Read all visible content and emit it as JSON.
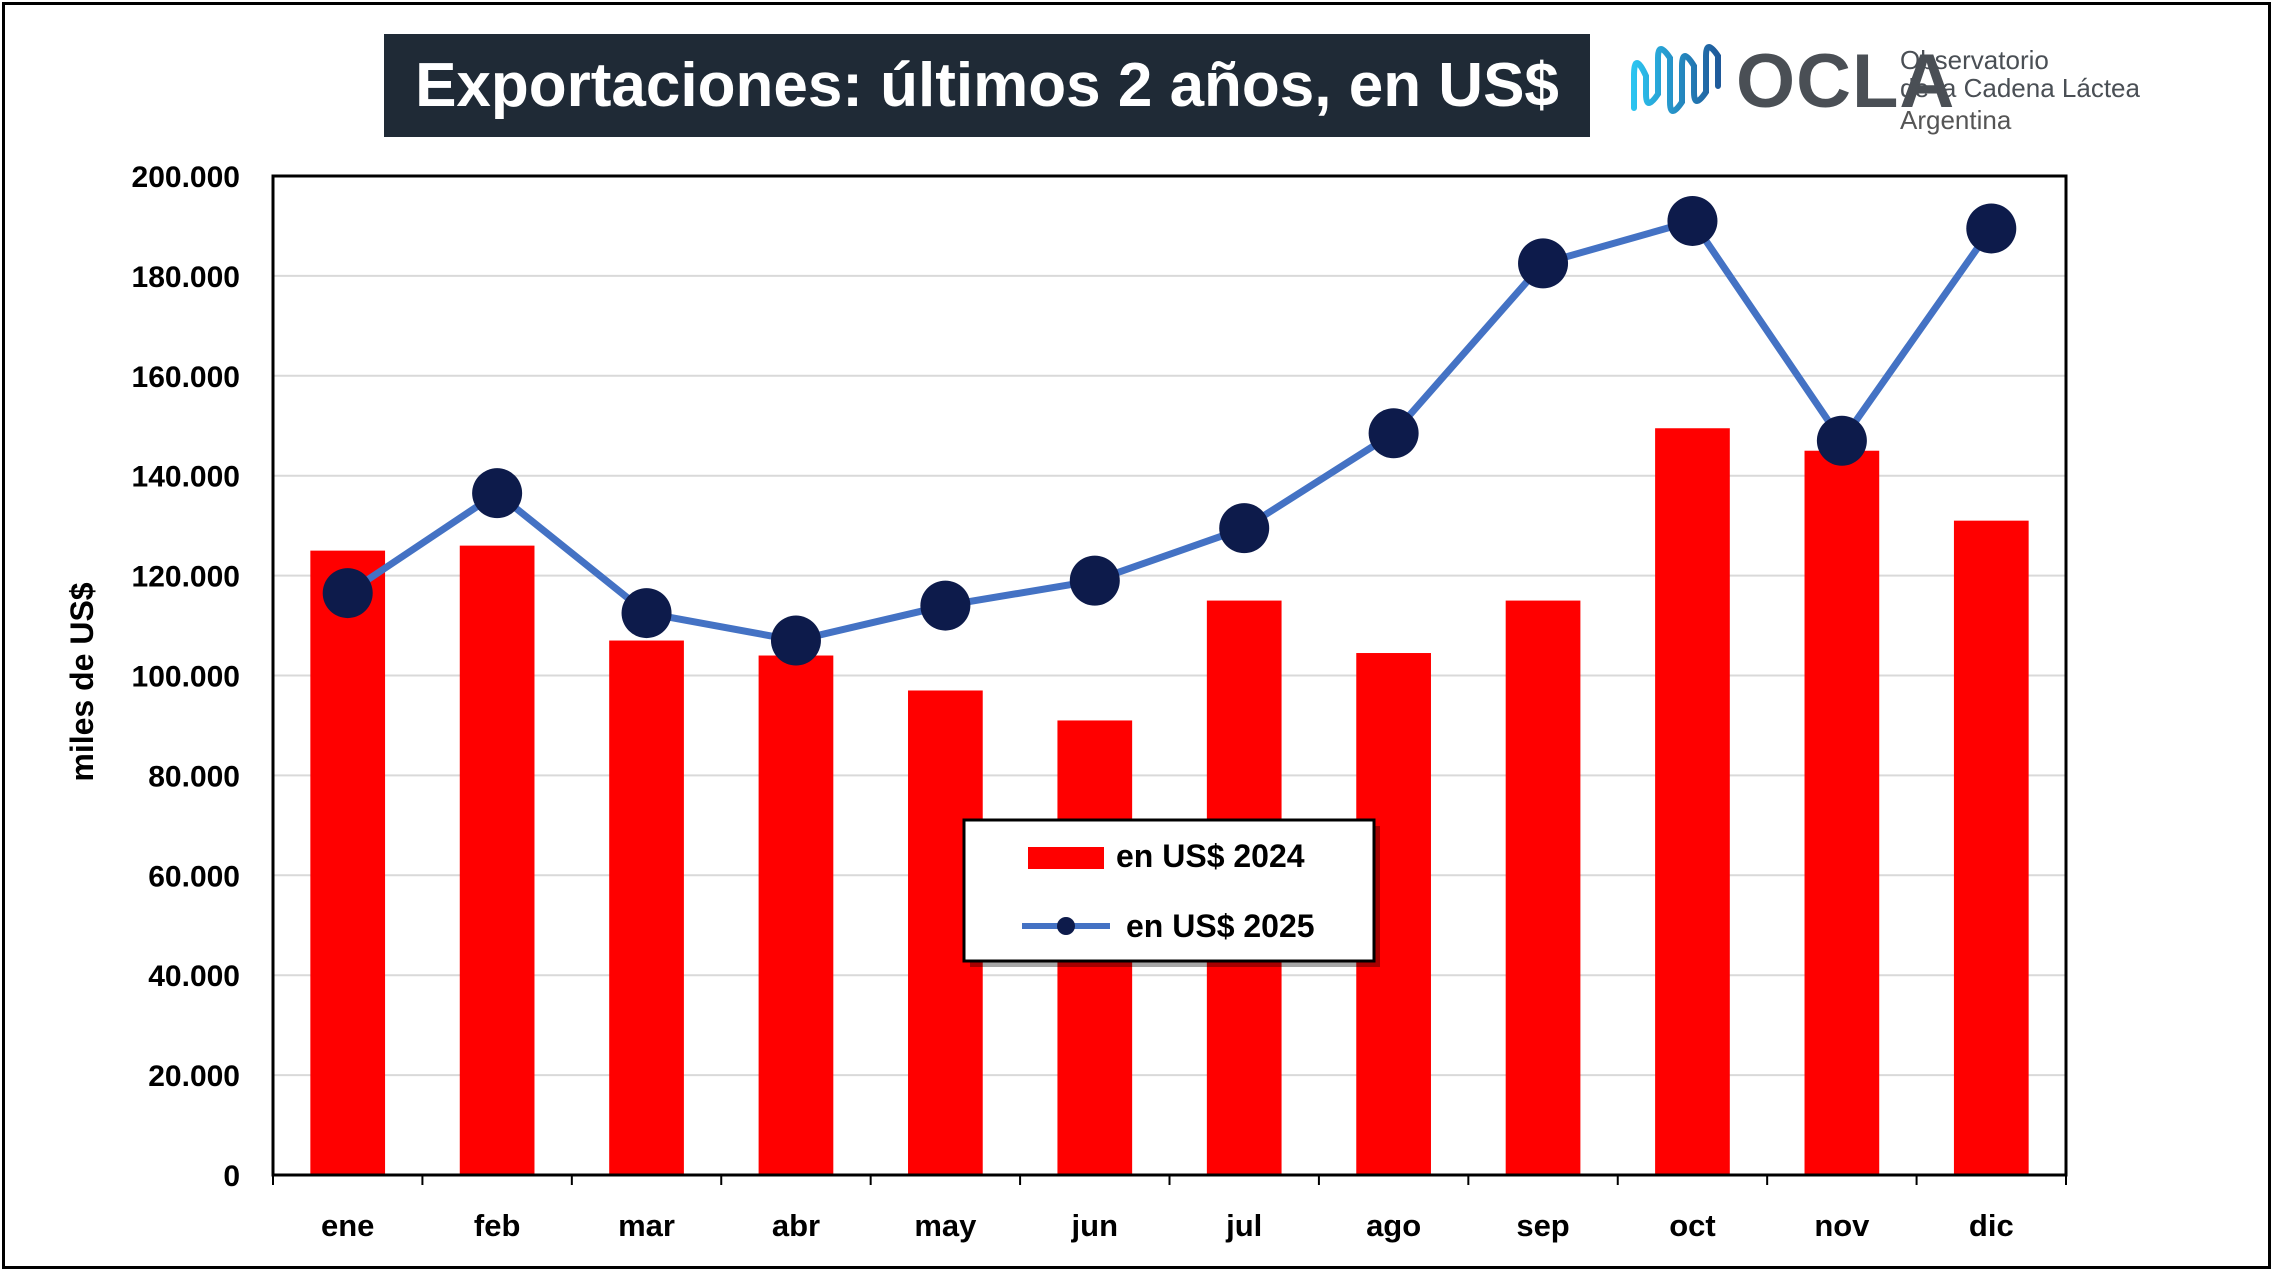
{
  "title": "Exportaciones: últimos 2 años, en US$",
  "logo": {
    "wordmark": "OCLA",
    "line1": "Observatorio",
    "line2": "de la Cadena Láctea",
    "line3": "Argentina",
    "icon": "wave-icon"
  },
  "chart_data": {
    "type": "bar",
    "title": "Exportaciones: últimos 2 años, en US$",
    "ylabel": "miles de US$",
    "xlabel": "",
    "categories": [
      "ene",
      "feb",
      "mar",
      "abr",
      "may",
      "jun",
      "jul",
      "ago",
      "sep",
      "oct",
      "nov",
      "dic"
    ],
    "ylim": [
      0,
      200000
    ],
    "yticks": [
      0,
      20000,
      40000,
      60000,
      80000,
      100000,
      120000,
      140000,
      160000,
      180000,
      200000
    ],
    "ytick_labels": [
      "0",
      "20.000",
      "40.000",
      "60.000",
      "80.000",
      "100.000",
      "120.000",
      "140.000",
      "160.000",
      "180.000",
      "200.000"
    ],
    "grid": true,
    "legend_position": "center",
    "series": [
      {
        "name": "en US$ 2024",
        "type": "bar",
        "color": "#ff0000",
        "values": [
          125000,
          126000,
          107000,
          104000,
          97000,
          91000,
          115000,
          104500,
          115000,
          149500,
          145000,
          131000
        ]
      },
      {
        "name": "en US$ 2025",
        "type": "line",
        "color": "#4472c4",
        "marker_color": "#0d1b4b",
        "values": [
          116500,
          136500,
          112500,
          107000,
          114000,
          119000,
          129500,
          148500,
          182500,
          191000,
          147000,
          189500
        ]
      }
    ]
  }
}
